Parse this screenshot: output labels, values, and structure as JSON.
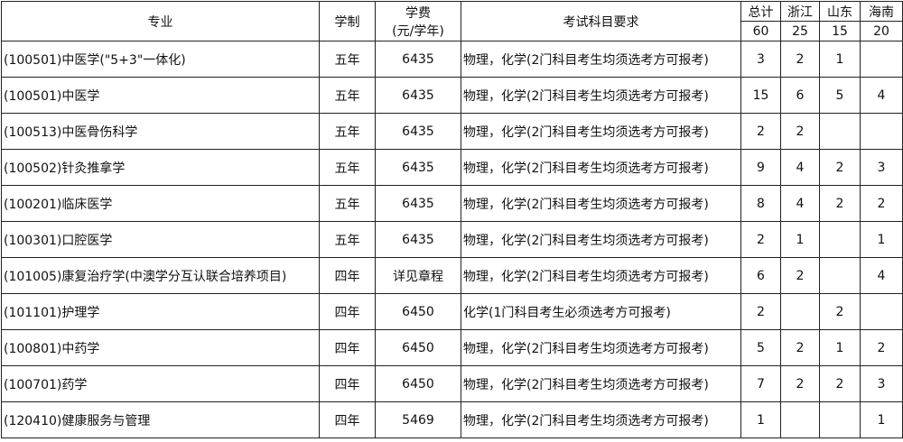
{
  "header": {
    "major": "专业",
    "duration": "学制",
    "fee_line1": "学费",
    "fee_line2": "(元/学年)",
    "subjects": "考试科目要求",
    "quotas": [
      {
        "label": "总计",
        "total": "60"
      },
      {
        "label": "浙江",
        "total": "25"
      },
      {
        "label": "山东",
        "total": "15"
      },
      {
        "label": "海南",
        "total": "20"
      }
    ]
  },
  "rows": [
    {
      "major": "(100501)中医学(\"5+3\"一体化)",
      "duration": "五年",
      "fee": "6435",
      "subjects": "物理，化学(2门科目考生均须选考方可报考)",
      "total": "3",
      "zj": "2",
      "sd": "1",
      "hn": ""
    },
    {
      "major": "(100501)中医学",
      "duration": "五年",
      "fee": "6435",
      "subjects": "物理，化学(2门科目考生均须选考方可报考)",
      "total": "15",
      "zj": "6",
      "sd": "5",
      "hn": "4"
    },
    {
      "major": "(100513)中医骨伤科学",
      "duration": "五年",
      "fee": "6435",
      "subjects": "物理，化学(2门科目考生均须选考方可报考)",
      "total": "2",
      "zj": "2",
      "sd": "",
      "hn": ""
    },
    {
      "major": "(100502)针灸推拿学",
      "duration": "五年",
      "fee": "6435",
      "subjects": "物理，化学(2门科目考生均须选考方可报考)",
      "total": "9",
      "zj": "4",
      "sd": "2",
      "hn": "3"
    },
    {
      "major": "(100201)临床医学",
      "duration": "五年",
      "fee": "6435",
      "subjects": "物理，化学(2门科目考生均须选考方可报考)",
      "total": "8",
      "zj": "4",
      "sd": "2",
      "hn": "2"
    },
    {
      "major": "(100301)口腔医学",
      "duration": "五年",
      "fee": "6435",
      "subjects": "物理，化学(2门科目考生均须选考方可报考)",
      "total": "2",
      "zj": "1",
      "sd": "",
      "hn": "1"
    },
    {
      "major": "(101005)康复治疗学(中澳学分互认联合培养项目)",
      "duration": "四年",
      "fee": "详见章程",
      "subjects": "物理，化学(2门科目考生均须选考方可报考)",
      "total": "6",
      "zj": "2",
      "sd": "",
      "hn": "4"
    },
    {
      "major": "(101101)护理学",
      "duration": "四年",
      "fee": "6450",
      "subjects": "化学(1门科目考生必须选考方可报考)",
      "total": "2",
      "zj": "",
      "sd": "2",
      "hn": ""
    },
    {
      "major": "(100801)中药学",
      "duration": "四年",
      "fee": "6450",
      "subjects": "物理，化学(2门科目考生均须选考方可报考)",
      "total": "5",
      "zj": "2",
      "sd": "1",
      "hn": "2"
    },
    {
      "major": "(100701)药学",
      "duration": "四年",
      "fee": "6450",
      "subjects": "物理，化学(2门科目考生均须选考方可报考)",
      "total": "7",
      "zj": "2",
      "sd": "2",
      "hn": "3"
    },
    {
      "major": "(120410)健康服务与管理",
      "duration": "四年",
      "fee": "5469",
      "subjects": "物理，化学(2门科目考生均须选考方可报考)",
      "total": "1",
      "zj": "",
      "sd": "",
      "hn": "1"
    }
  ]
}
